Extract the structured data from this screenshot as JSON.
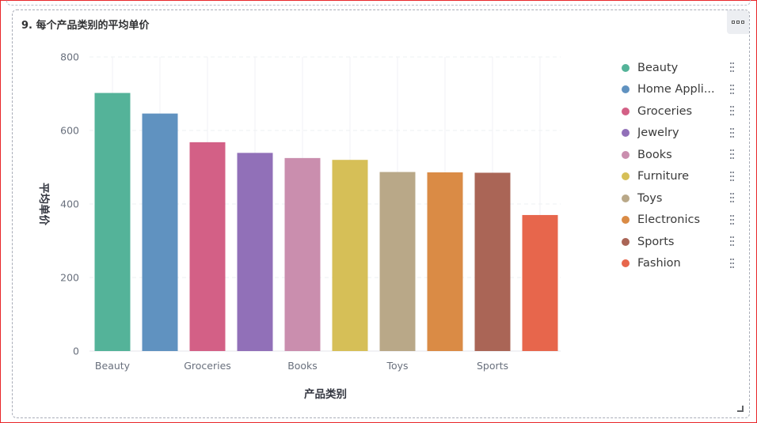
{
  "panel": {
    "title": "9. 每个产品类别的平均单价"
  },
  "chart_data": {
    "type": "bar",
    "title": "9. 每个产品类别的平均单价",
    "xlabel": "产品类别",
    "ylabel": "平均单价",
    "ylim": [
      0,
      800
    ],
    "yticks": [
      0,
      200,
      400,
      600,
      800
    ],
    "grid": true,
    "legend_position": "right",
    "categories": [
      "Beauty",
      "Home Appliances",
      "Groceries",
      "Jewelry",
      "Books",
      "Furniture",
      "Toys",
      "Electronics",
      "Sports",
      "Fashion"
    ],
    "x_tick_labels": [
      "Beauty",
      "",
      "Groceries",
      "",
      "Books",
      "",
      "Toys",
      "",
      "Sports",
      ""
    ],
    "values": [
      702,
      646,
      568,
      539,
      525,
      520,
      487,
      486,
      485,
      370
    ],
    "colors": [
      "#54b399",
      "#6092c0",
      "#d36086",
      "#9170b8",
      "#ca8eae",
      "#d6bf57",
      "#b9a888",
      "#da8b45",
      "#aa6556",
      "#e7664c"
    ]
  },
  "legend": {
    "items": [
      {
        "label": "Beauty",
        "color": "#54b399"
      },
      {
        "label": "Home Appli...",
        "color": "#6092c0"
      },
      {
        "label": "Groceries",
        "color": "#d36086"
      },
      {
        "label": "Jewelry",
        "color": "#9170b8"
      },
      {
        "label": "Books",
        "color": "#ca8eae"
      },
      {
        "label": "Furniture",
        "color": "#d6bf57"
      },
      {
        "label": "Toys",
        "color": "#b9a888"
      },
      {
        "label": "Electronics",
        "color": "#da8b45"
      },
      {
        "label": "Sports",
        "color": "#aa6556"
      },
      {
        "label": "Fashion",
        "color": "#e7664c"
      }
    ]
  },
  "icons": {
    "more": "more-options-icon",
    "drag": "drag-handle-icon",
    "resize": "resize-handle-icon"
  }
}
